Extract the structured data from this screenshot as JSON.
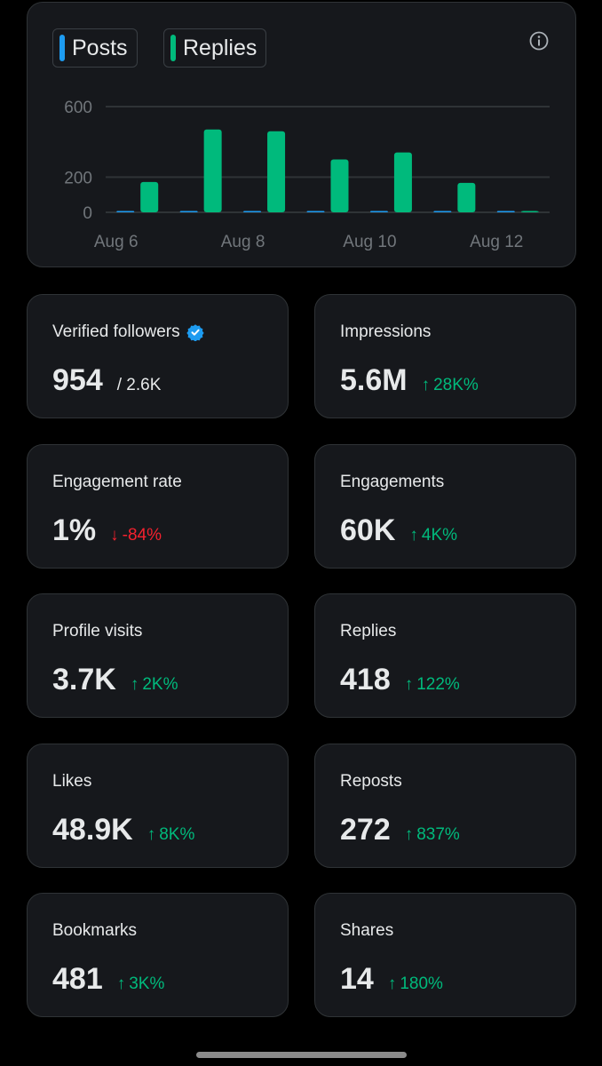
{
  "legend": {
    "posts": {
      "label": "Posts",
      "color": "#1d9bf0"
    },
    "replies": {
      "label": "Replies",
      "color": "#00ba7c"
    }
  },
  "chart_data": {
    "type": "bar",
    "categories": [
      "Aug 6",
      "Aug 7",
      "Aug 8",
      "Aug 9",
      "Aug 10",
      "Aug 11",
      "Aug 12"
    ],
    "x_tick_labels": [
      "Aug 6",
      "Aug 8",
      "Aug 10",
      "Aug 12"
    ],
    "y_tick_labels": [
      "600",
      "200",
      "0"
    ],
    "y_ticks": [
      600,
      200,
      0
    ],
    "ylim": [
      0,
      600
    ],
    "grid": true,
    "legend_position": "top-left",
    "series": [
      {
        "name": "Posts",
        "color": "#1d9bf0",
        "values": [
          2,
          2,
          1,
          0,
          0,
          2,
          0
        ]
      },
      {
        "name": "Replies",
        "color": "#00ba7c",
        "values": [
          172,
          470,
          460,
          300,
          340,
          167,
          2
        ]
      }
    ]
  },
  "stats": [
    {
      "label": "Verified followers",
      "value": "954",
      "sub": "/ 2.6K",
      "verified": true
    },
    {
      "label": "Impressions",
      "value": "5.6M",
      "change": "28K%",
      "direction": "up"
    },
    {
      "label": "Engagement rate",
      "value": "1%",
      "change": "-84%",
      "direction": "down"
    },
    {
      "label": "Engagements",
      "value": "60K",
      "change": "4K%",
      "direction": "up"
    },
    {
      "label": "Profile visits",
      "value": "3.7K",
      "change": "2K%",
      "direction": "up"
    },
    {
      "label": "Replies",
      "value": "418",
      "change": "122%",
      "direction": "up"
    },
    {
      "label": "Likes",
      "value": "48.9K",
      "change": "8K%",
      "direction": "up"
    },
    {
      "label": "Reposts",
      "value": "272",
      "change": "837%",
      "direction": "up"
    },
    {
      "label": "Bookmarks",
      "value": "481",
      "change": "3K%",
      "direction": "up"
    },
    {
      "label": "Shares",
      "value": "14",
      "change": "180%",
      "direction": "up"
    }
  ],
  "arrows": {
    "up": "↑",
    "down": "↓"
  },
  "icons": {
    "info": "info-icon",
    "verified": "verified-badge-icon"
  }
}
